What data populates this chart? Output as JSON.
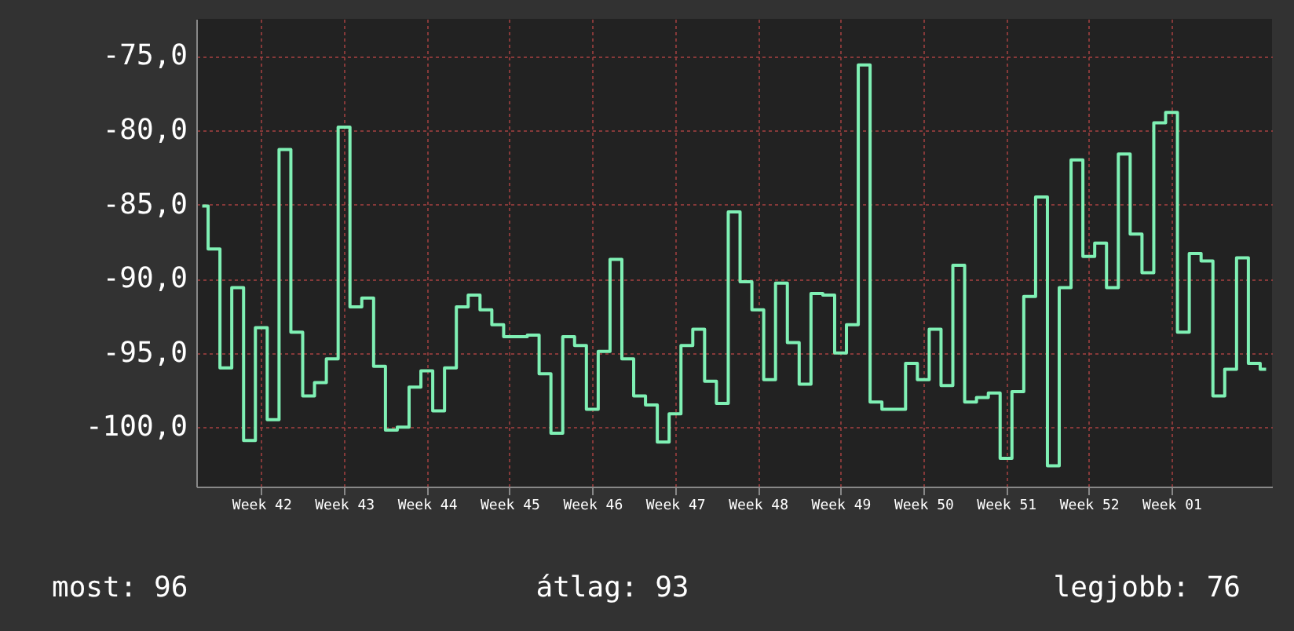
{
  "chart_data": {
    "type": "step",
    "line_style": "solid",
    "marker": "none",
    "grid": true,
    "categories": [
      null,
      null,
      null,
      null,
      null,
      "Week 42",
      null,
      null,
      null,
      null,
      null,
      null,
      "Week 43",
      null,
      null,
      null,
      null,
      null,
      null,
      "Week 44",
      null,
      null,
      null,
      null,
      null,
      null,
      "Week 45",
      null,
      null,
      null,
      null,
      null,
      null,
      "Week 46",
      null,
      null,
      null,
      null,
      null,
      null,
      "Week 47",
      null,
      null,
      null,
      null,
      null,
      null,
      "Week 48",
      null,
      null,
      null,
      null,
      null,
      null,
      "Week 49",
      null,
      null,
      null,
      null,
      null,
      null,
      "Week 50",
      null,
      null,
      null,
      null,
      null,
      null,
      "Week 51",
      null,
      null,
      null,
      null,
      null,
      null,
      "Week 52",
      null,
      null,
      null,
      null,
      null,
      null,
      "Week 01",
      null,
      null,
      null,
      null,
      null,
      null,
      null,
      null
    ],
    "series": [
      {
        "color": "#7ff0b4",
        "values": [
          -85.1,
          -88.0,
          -96.0,
          -90.6,
          -100.9,
          -93.3,
          -99.5,
          -81.3,
          -93.6,
          -97.9,
          -97.0,
          -95.4,
          -79.8,
          -91.9,
          -91.3,
          -95.9,
          -100.2,
          -100.0,
          -97.3,
          -96.2,
          -98.9,
          -96.0,
          -91.9,
          -91.1,
          -92.1,
          -93.1,
          -93.9,
          -93.9,
          -93.8,
          -96.4,
          -100.4,
          -93.9,
          -94.5,
          -98.8,
          -94.9,
          -88.7,
          -95.4,
          -97.9,
          -98.5,
          -101.0,
          -99.1,
          -94.5,
          -93.4,
          -96.9,
          -98.4,
          -85.5,
          -90.2,
          -92.1,
          -96.8,
          -90.3,
          -94.3,
          -97.1,
          -91.0,
          -91.1,
          -95.0,
          -93.1,
          -75.6,
          -98.3,
          -98.8,
          -98.8,
          -95.7,
          -96.8,
          -93.4,
          -97.2,
          -89.1,
          -98.3,
          -98.0,
          -97.7,
          -102.1,
          -97.6,
          -91.2,
          -84.5,
          -102.6,
          -90.6,
          -82.0,
          -88.5,
          -87.6,
          -90.6,
          -81.6,
          -87.0,
          -89.6,
          -79.5,
          -78.8,
          -93.6,
          -88.3,
          -88.8,
          -97.9,
          -96.1,
          -88.6,
          -95.7,
          -96.1
        ]
      }
    ],
    "ylim": [
      -104,
      -72.5
    ],
    "yticks": [
      {
        "value": -100,
        "label": "-100,0"
      },
      {
        "value": -95,
        "label": "-95,0"
      },
      {
        "value": -90,
        "label": "-90,0"
      },
      {
        "value": -85,
        "label": "-85,0"
      },
      {
        "value": -80,
        "label": "-80,0"
      },
      {
        "value": -75,
        "label": "-75,0"
      }
    ],
    "annotations": [
      "most: 96",
      "átlag: 93",
      "legjobb: 76"
    ]
  }
}
